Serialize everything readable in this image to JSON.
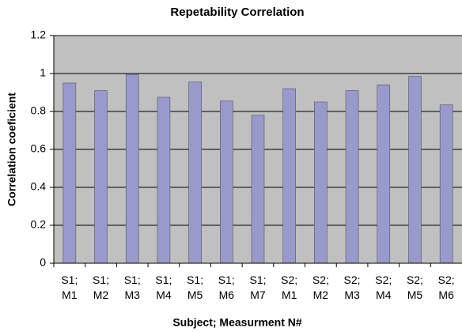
{
  "chart_data": {
    "type": "bar",
    "title": "Repetability Correlation",
    "x_label": "Subject; Measurment N#",
    "y_label": "Correlation coeficient",
    "categories": [
      "S1; M1",
      "S1; M2",
      "S1; M3",
      "S1; M4",
      "S1; M5",
      "S1; M6",
      "S1; M7",
      "S2; M1",
      "S2; M2",
      "S2; M3",
      "S2; M4",
      "S2; M5",
      "S2; M6"
    ],
    "values": [
      0.95,
      0.91,
      0.995,
      0.875,
      0.955,
      0.855,
      0.78,
      0.92,
      0.85,
      0.91,
      0.94,
      0.985,
      0.835
    ],
    "color": "#9999cc",
    "plot_background": "#c0c0c0",
    "ylim": [
      0,
      1.2
    ],
    "yticks": [
      0,
      0.2,
      0.4,
      0.6,
      0.8,
      1,
      1.2
    ],
    "grid": true
  }
}
